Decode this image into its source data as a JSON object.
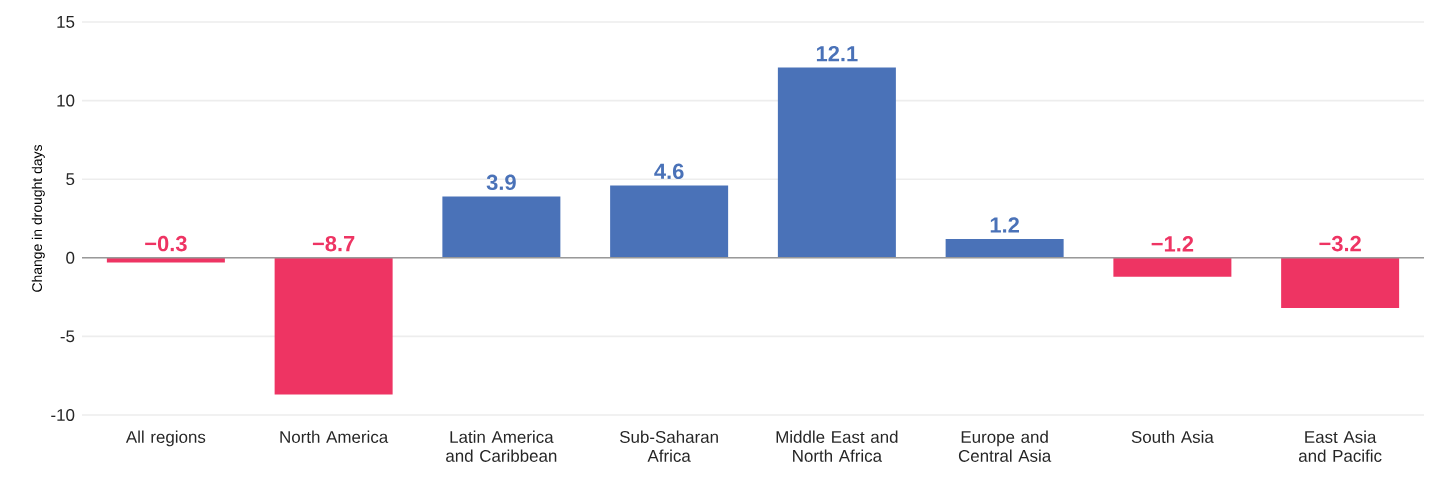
{
  "chart_data": {
    "type": "bar",
    "ylabel": "Change in drought days",
    "categories": [
      "All regions",
      "North America",
      "Latin America and Caribbean",
      "Sub-Saharan Africa",
      "Middle East and North Africa",
      "Europe and Central Asia",
      "South Asia",
      "East Asia and Pacific"
    ],
    "values": [
      -0.3,
      -8.7,
      3.9,
      4.6,
      12.1,
      1.2,
      -1.2,
      -3.2
    ],
    "colors": [
      "#ee3463",
      "#ee3463",
      "#4a72b8",
      "#4a72b8",
      "#4a72b8",
      "#4a72b8",
      "#ee3463",
      "#ee3463"
    ],
    "value_labels": [
      "−0.3",
      "−8.7",
      "3.9",
      "4.6",
      "12.1",
      "1.2",
      "−1.2",
      "−3.2"
    ],
    "ylim": [
      -10,
      15
    ],
    "yticks": [
      -10,
      -5,
      0,
      5,
      10,
      15
    ],
    "grid": "y"
  }
}
